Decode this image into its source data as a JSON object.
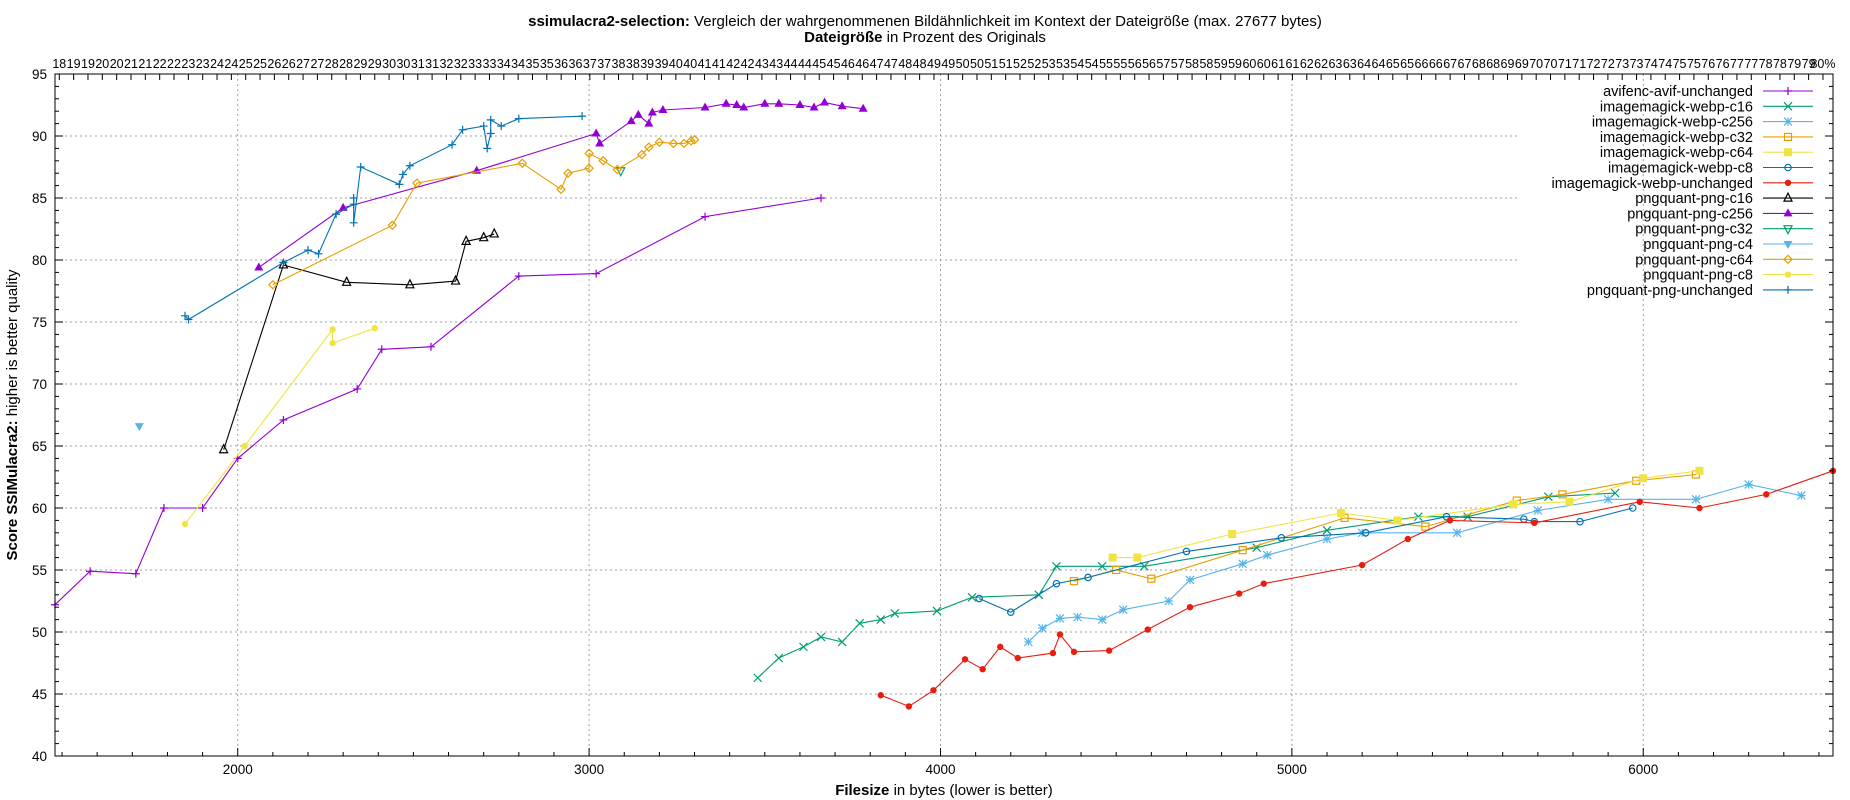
{
  "chart_data": {
    "type": "line",
    "title": {
      "bold": "ssimulacra2-selection:",
      "rest": "Vergleich der wahrgenommenen Bildähnlichkeit im Kontext der Dateigröße (max. 27677 bytes)",
      "line2_bold": "Dateigröße",
      "line2_rest": "in Prozent des Originals"
    },
    "xlabel": {
      "bold": "Filesize",
      "rest": "in bytes (lower is better)"
    },
    "ylabel": {
      "bold": "Score SSIMulacra2:",
      "rest": "higher is better quality"
    },
    "xlim": [
      1480,
      6540
    ],
    "ylim": [
      40,
      95
    ],
    "x_ticks": [
      2000,
      3000,
      4000,
      5000,
      6000
    ],
    "y_ticks": [
      40,
      45,
      50,
      55,
      60,
      65,
      70,
      75,
      80,
      85,
      90,
      95
    ],
    "top_ticks": [
      "18",
      "19",
      "19",
      "20",
      "20",
      "21",
      "21",
      "22",
      "22",
      "23",
      "23",
      "24",
      "24",
      "25",
      "25",
      "26",
      "26",
      "27",
      "27",
      "28",
      "28",
      "29",
      "29",
      "30",
      "30",
      "31",
      "31",
      "32",
      "32",
      "33",
      "33",
      "34",
      "34",
      "35",
      "35",
      "36",
      "36",
      "37",
      "37",
      "38",
      "38",
      "39",
      "39",
      "40",
      "40",
      "41",
      "41",
      "42",
      "42",
      "43",
      "43",
      "44",
      "44",
      "45",
      "45",
      "46",
      "46",
      "47",
      "47",
      "48",
      "48",
      "49",
      "49",
      "50",
      "50",
      "51",
      "51",
      "52",
      "52",
      "53",
      "53",
      "54",
      "54",
      "55",
      "55",
      "56",
      "56",
      "57",
      "57",
      "58",
      "58",
      "59",
      "59",
      "60",
      "60",
      "61",
      "61",
      "62",
      "62",
      "63",
      "63",
      "64",
      "64",
      "65",
      "65",
      "66",
      "66",
      "67",
      "67",
      "68",
      "68",
      "69",
      "69",
      "70",
      "70",
      "71",
      "71",
      "72",
      "72",
      "73",
      "73",
      "74",
      "74",
      "75",
      "75",
      "76",
      "76",
      "77",
      "77",
      "78",
      "78",
      "79",
      "79",
      "80%"
    ],
    "grid": true,
    "legend_position": "top-right",
    "series": [
      {
        "name": "avifenc-avif-unchanged",
        "color": "#9400d3",
        "marker": "plus",
        "points": [
          [
            1480,
            52.2
          ],
          [
            1580,
            54.9
          ],
          [
            1710,
            54.7
          ],
          [
            1790,
            60.0
          ],
          [
            1900,
            60.0
          ],
          [
            2000,
            64.0
          ],
          [
            2130,
            67.1
          ],
          [
            2340,
            69.6
          ],
          [
            2410,
            72.8
          ],
          [
            2550,
            73.0
          ],
          [
            2800,
            78.7
          ],
          [
            3020,
            78.9
          ],
          [
            3330,
            83.5
          ],
          [
            3660,
            85.0
          ]
        ]
      },
      {
        "name": "imagemagick-webp-c16",
        "color": "#009e73",
        "marker": "x",
        "points": [
          [
            3480,
            46.3
          ],
          [
            3540,
            47.9
          ],
          [
            3610,
            48.8
          ],
          [
            3660,
            49.6
          ],
          [
            3720,
            49.2
          ],
          [
            3770,
            50.7
          ],
          [
            3830,
            51.0
          ],
          [
            3870,
            51.5
          ],
          [
            3990,
            51.7
          ],
          [
            4090,
            52.8
          ],
          [
            4280,
            53.0
          ],
          [
            4330,
            55.3
          ],
          [
            4460,
            55.3
          ],
          [
            4580,
            55.3
          ],
          [
            4900,
            56.8
          ],
          [
            5100,
            58.2
          ],
          [
            5360,
            59.3
          ],
          [
            5500,
            59.3
          ],
          [
            5730,
            60.9
          ],
          [
            5920,
            61.2
          ]
        ]
      },
      {
        "name": "imagemagick-webp-c256",
        "color": "#56b4e9",
        "marker": "star",
        "points": [
          [
            4250,
            49.2
          ],
          [
            4290,
            50.3
          ],
          [
            4340,
            51.1
          ],
          [
            4390,
            51.2
          ],
          [
            4460,
            51.0
          ],
          [
            4520,
            51.8
          ],
          [
            4650,
            52.5
          ],
          [
            4710,
            54.2
          ],
          [
            4860,
            55.5
          ],
          [
            4930,
            56.2
          ],
          [
            5100,
            57.5
          ],
          [
            5200,
            58.0
          ],
          [
            5470,
            58.0
          ],
          [
            5700,
            59.8
          ],
          [
            5900,
            60.7
          ],
          [
            6150,
            60.7
          ],
          [
            6300,
            61.9
          ],
          [
            6450,
            61.0
          ]
        ]
      },
      {
        "name": "imagemagick-webp-c32",
        "color": "#e69f00",
        "marker": "square",
        "points": [
          [
            4380,
            54.1
          ],
          [
            4500,
            55.0
          ],
          [
            4600,
            54.3
          ],
          [
            4860,
            56.6
          ],
          [
            5150,
            59.2
          ],
          [
            5380,
            58.5
          ],
          [
            5640,
            60.6
          ],
          [
            5770,
            61.1
          ],
          [
            5980,
            62.2
          ],
          [
            6150,
            62.7
          ]
        ]
      },
      {
        "name": "imagemagick-webp-c64",
        "color": "#f0e442",
        "marker": "square-filled",
        "points": [
          [
            4490,
            56.0
          ],
          [
            4560,
            56.0
          ],
          [
            4830,
            57.9
          ],
          [
            5140,
            59.6
          ],
          [
            5300,
            59.0
          ],
          [
            5630,
            60.3
          ],
          [
            5790,
            60.5
          ],
          [
            6000,
            62.4
          ],
          [
            6160,
            63.0
          ]
        ]
      },
      {
        "name": "imagemagick-webp-c8",
        "color": "#0072b2",
        "marker": "circle",
        "points": [
          [
            4110,
            52.7
          ],
          [
            4200,
            51.6
          ],
          [
            4330,
            53.9
          ],
          [
            4420,
            54.4
          ],
          [
            4700,
            56.5
          ],
          [
            4970,
            57.6
          ],
          [
            5210,
            58.0
          ],
          [
            5440,
            59.3
          ],
          [
            5660,
            59.1
          ],
          [
            5690,
            58.9
          ],
          [
            5820,
            58.9
          ],
          [
            5970,
            60.0
          ]
        ]
      },
      {
        "name": "imagemagick-webp-unchanged",
        "color": "#e51e10",
        "marker": "circle-filled",
        "points": [
          [
            3830,
            44.9
          ],
          [
            3910,
            44.0
          ],
          [
            3980,
            45.3
          ],
          [
            4070,
            47.8
          ],
          [
            4120,
            47.0
          ],
          [
            4170,
            48.8
          ],
          [
            4220,
            47.9
          ],
          [
            4320,
            48.3
          ],
          [
            4340,
            49.8
          ],
          [
            4380,
            48.4
          ],
          [
            4480,
            48.5
          ],
          [
            4590,
            50.2
          ],
          [
            4710,
            52.0
          ],
          [
            4850,
            53.1
          ],
          [
            4920,
            53.9
          ],
          [
            5200,
            55.4
          ],
          [
            5330,
            57.5
          ],
          [
            5450,
            59.0
          ],
          [
            5690,
            58.8
          ],
          [
            5990,
            60.5
          ],
          [
            6160,
            60.0
          ],
          [
            6350,
            61.1
          ],
          [
            6540,
            63.0
          ]
        ]
      },
      {
        "name": "pngquant-png-c16",
        "color": "#000000",
        "marker": "triangle",
        "points": [
          [
            1960,
            64.7
          ],
          [
            2130,
            79.6
          ],
          [
            2310,
            78.2
          ],
          [
            2490,
            78.0
          ],
          [
            2620,
            78.3
          ],
          [
            2650,
            81.5
          ],
          [
            2700,
            81.8
          ],
          [
            2730,
            82.1
          ]
        ]
      },
      {
        "name": "pngquant-png-c256",
        "color": "#9400d3",
        "marker": "triangle-filled",
        "points": [
          [
            2060,
            79.4
          ],
          [
            2300,
            84.2
          ],
          [
            2680,
            87.2
          ],
          [
            3020,
            90.2
          ],
          [
            3030,
            89.4
          ],
          [
            3120,
            91.2
          ],
          [
            3140,
            91.7
          ],
          [
            3170,
            91.0
          ],
          [
            3180,
            91.9
          ],
          [
            3210,
            92.1
          ],
          [
            3330,
            92.3
          ],
          [
            3390,
            92.6
          ],
          [
            3420,
            92.5
          ],
          [
            3440,
            92.3
          ],
          [
            3500,
            92.6
          ],
          [
            3540,
            92.6
          ],
          [
            3600,
            92.5
          ],
          [
            3640,
            92.3
          ],
          [
            3670,
            92.7
          ],
          [
            3720,
            92.4
          ],
          [
            3780,
            92.2
          ]
        ]
      },
      {
        "name": "pngquant-png-c32",
        "color": "#009e73",
        "marker": "triangle-down",
        "points": [
          [
            3090,
            87.2
          ]
        ]
      },
      {
        "name": "pngquant-png-c4",
        "color": "#56b4e9",
        "marker": "triangle-down-filled",
        "points": [
          [
            1720,
            66.6
          ]
        ]
      },
      {
        "name": "pngquant-png-c64",
        "color": "#e69f00",
        "marker": "diamond",
        "points": [
          [
            2100,
            78.0
          ],
          [
            2440,
            82.8
          ],
          [
            2510,
            86.2
          ],
          [
            2810,
            87.8
          ],
          [
            2920,
            85.7
          ],
          [
            2940,
            87.0
          ],
          [
            3000,
            87.4
          ],
          [
            3000,
            88.6
          ],
          [
            3040,
            88.0
          ],
          [
            3080,
            87.3
          ],
          [
            3150,
            88.5
          ],
          [
            3170,
            89.1
          ],
          [
            3200,
            89.5
          ],
          [
            3240,
            89.4
          ],
          [
            3270,
            89.4
          ],
          [
            3290,
            89.6
          ],
          [
            3300,
            89.7
          ]
        ]
      },
      {
        "name": "pngquant-png-c8",
        "color": "#f0e442",
        "marker": "circle-filled",
        "points": [
          [
            1850,
            58.7
          ],
          [
            2020,
            65.0
          ],
          [
            2270,
            74.4
          ],
          [
            2270,
            73.3
          ],
          [
            2390,
            74.5
          ]
        ]
      },
      {
        "name": "pngquant-png-unchanged",
        "color": "#0072b2",
        "marker": "plus",
        "points": [
          [
            1850,
            75.5
          ],
          [
            1860,
            75.2
          ],
          [
            2130,
            79.8
          ],
          [
            2200,
            80.8
          ],
          [
            2230,
            80.5
          ],
          [
            2280,
            83.7
          ],
          [
            2330,
            84.5
          ],
          [
            2330,
            85.0
          ],
          [
            2330,
            83.0
          ],
          [
            2350,
            87.5
          ],
          [
            2460,
            86.1
          ],
          [
            2470,
            86.9
          ],
          [
            2490,
            87.6
          ],
          [
            2610,
            89.3
          ],
          [
            2640,
            90.5
          ],
          [
            2700,
            90.8
          ],
          [
            2710,
            89.0
          ],
          [
            2720,
            90.2
          ],
          [
            2720,
            91.3
          ],
          [
            2750,
            90.8
          ],
          [
            2800,
            91.4
          ],
          [
            2980,
            91.6
          ]
        ]
      }
    ]
  }
}
